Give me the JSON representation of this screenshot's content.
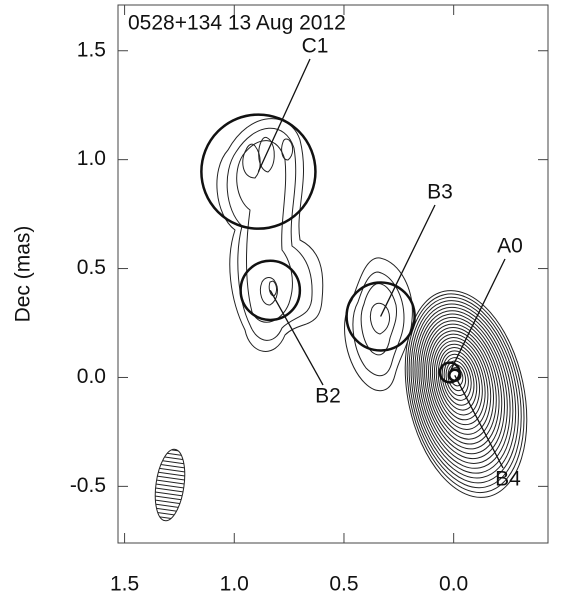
{
  "chart_data": {
    "type": "scatter",
    "title": "0528+134  13 Aug 2012",
    "ylabel": "Dec (mas)",
    "xlim": [
      1.53,
      -0.43
    ],
    "ylim": [
      -0.76,
      1.71
    ],
    "xticks": [
      1.5,
      {
        "value": 1.0,
        "label": "1.0"
      },
      0.5,
      {
        "value": 0.0,
        "label": "0.0"
      }
    ],
    "yticks": [
      -0.5,
      {
        "value": 0.0,
        "label": "0.0"
      },
      0.5,
      {
        "value": 1.0,
        "label": "1.0"
      },
      1.5
    ],
    "points": [
      {
        "name": "C1",
        "x": 0.89,
        "y": 0.945,
        "size": 0.52
      },
      {
        "name": "B2",
        "x": 0.836,
        "y": 0.4,
        "size": 0.27
      },
      {
        "name": "B3",
        "x": 0.333,
        "y": 0.28,
        "size": 0.31
      },
      {
        "name": "A0",
        "x": 0.018,
        "y": 0.023,
        "size": 0.09
      },
      {
        "name": "B4",
        "x": -0.005,
        "y": 0.01,
        "size": 0.05
      }
    ]
  }
}
